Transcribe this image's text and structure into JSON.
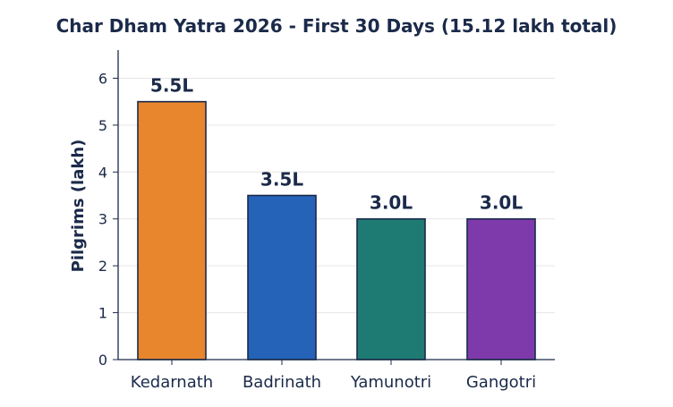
{
  "chart_data": {
    "type": "bar",
    "title": "Char Dham Yatra 2026 - First 30 Days (15.12 lakh total)",
    "xlabel": "",
    "ylabel": "Pilgrims (lakh)",
    "categories": [
      "Kedarnath",
      "Badrinath",
      "Yamunotri",
      "Gangotri"
    ],
    "values": [
      5.5,
      3.5,
      3.0,
      3.0
    ],
    "data_labels": [
      "5.5L",
      "3.5L",
      "3.0L",
      "3.0L"
    ],
    "colors": [
      "#e8862d",
      "#2563b8",
      "#1e7b73",
      "#7e3aab"
    ],
    "bar_edge_color": "#1b2a4a",
    "ylim": [
      0,
      6.6
    ],
    "yticks": [
      0,
      1,
      2,
      3,
      4,
      5,
      6
    ],
    "grid": "horizontal",
    "legend": "none"
  }
}
